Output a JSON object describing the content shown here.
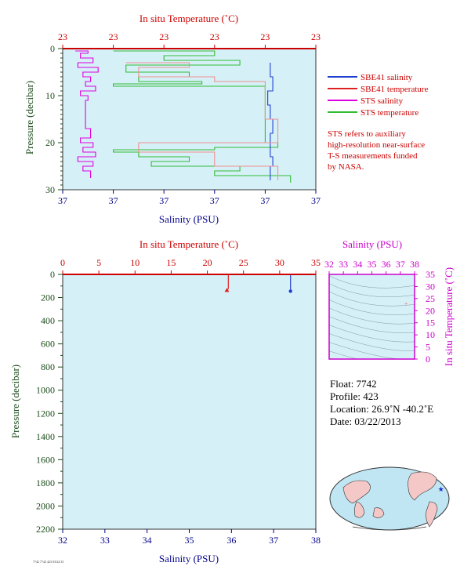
{
  "colors": {
    "plot_bg": "#d6f0f8",
    "salinity_axis": "#00008b",
    "temperature_axis": "#cc0000",
    "sbe_salinity": "#1f3fd0",
    "sbe_temperature": "#e02020",
    "sts_salinity": "#e000e0",
    "sts_temperature": "#33bb33",
    "sts_temperature_light": "#f09090",
    "ts_axis": "#cc00cc",
    "pressure_axis": "#1a4a1a",
    "note_text": "#cc0000"
  },
  "chart_data": [
    {
      "type": "line",
      "title": "In situ Temperature (˚C)",
      "top_axis_label": "In situ Temperature (˚C)",
      "top_ticks": [
        "23",
        "23",
        "23",
        "23",
        "23",
        "23"
      ],
      "xlabel": "Salinity (PSU)",
      "bottom_ticks": [
        "37",
        "37",
        "37",
        "37",
        "37",
        "37"
      ],
      "ylabel": "Pressure (decibar)",
      "y_ticks": [
        "0",
        "10",
        "20",
        "30"
      ],
      "ylim": [
        0,
        30
      ],
      "grid": false,
      "legend": [
        {
          "label": "SBE41 salinity",
          "color": "#1f3fd0"
        },
        {
          "label": "SBE41 temperature",
          "color": "#e02020"
        },
        {
          "label": "STS salinity",
          "color": "#e000e0"
        },
        {
          "label": "STS temperature",
          "color": "#33bb33"
        }
      ],
      "note": [
        "STS refers to auxiliary",
        "high-resolution near-surface",
        "T-S measurements funded",
        "by NASA."
      ],
      "series": [
        {
          "name": "STS salinity",
          "x_frac": [
            0.05,
            0.1,
            0.07,
            0.12,
            0.06,
            0.14,
            0.08,
            0.11,
            0.09,
            0.13,
            0.07,
            0.1,
            0.09,
            0.09,
            0.09,
            0.09,
            0.09,
            0.09,
            0.11,
            0.07,
            0.12,
            0.08,
            0.13,
            0.06,
            0.12,
            0.08,
            0.11
          ],
          "y": [
            0.5,
            1,
            2,
            3,
            4,
            5,
            6,
            7,
            8,
            9,
            10,
            11,
            12,
            13,
            14,
            15,
            16,
            17,
            19,
            20,
            21,
            22,
            23,
            24,
            25,
            26,
            27.5
          ]
        },
        {
          "name": "STS temperature",
          "x_frac": [
            0.2,
            0.6,
            0.4,
            0.7,
            0.25,
            0.5,
            0.3,
            0.55,
            0.2,
            0.8,
            0.8,
            0.8,
            0.8,
            0.8,
            0.8,
            0.8,
            0.85,
            0.6,
            0.2,
            0.3,
            0.5,
            0.35,
            0.7,
            0.6,
            0.9,
            0.9
          ],
          "y": [
            0.5,
            1.5,
            2.5,
            3.5,
            5,
            6,
            7,
            7.5,
            8,
            9,
            11,
            13,
            15,
            17,
            19,
            20,
            21,
            21.5,
            22,
            23,
            24,
            25,
            26,
            27,
            28,
            28.5
          ]
        },
        {
          "name": "SBE41 salinity",
          "x_frac": [
            0.82,
            0.82,
            0.83,
            0.81,
            0.82,
            0.83,
            0.82,
            0.82,
            0.83,
            0.82,
            0.82
          ],
          "y": [
            3,
            6,
            9,
            12,
            15,
            18,
            21,
            23,
            25,
            27,
            28
          ]
        },
        {
          "name": "SBE41 temperature",
          "x_frac": [
            0.25,
            0.5,
            0.3,
            0.6,
            0.8,
            0.8,
            0.85,
            0.3,
            0.6,
            0.85
          ],
          "y": [
            3,
            4,
            6,
            7,
            8,
            15,
            20,
            22,
            25,
            28
          ]
        }
      ]
    },
    {
      "type": "line",
      "top_axis_label": "In situ Temperature (˚C)",
      "top_ticks": [
        "0",
        "5",
        "10",
        "15",
        "20",
        "25",
        "30",
        "35"
      ],
      "xlim_temperature": [
        0,
        35
      ],
      "xlabel": "Salinity (PSU)",
      "bottom_ticks": [
        "32",
        "33",
        "34",
        "35",
        "36",
        "37",
        "38"
      ],
      "xlim_salinity": [
        32,
        38
      ],
      "ylabel": "Pressure (decibar)",
      "y_ticks": [
        "0",
        "200",
        "400",
        "600",
        "800",
        "1000",
        "1200",
        "1400",
        "1600",
        "1800",
        "2000",
        "2200"
      ],
      "ylim": [
        0,
        2200
      ],
      "grid": false,
      "series": [
        {
          "name": "temperature",
          "x": [
            22.9,
            22.9,
            22.7
          ],
          "y": [
            0,
            120,
            145
          ]
        },
        {
          "name": "salinity",
          "x": [
            37.4,
            37.4,
            37.4
          ],
          "y": [
            0,
            120,
            145
          ]
        }
      ]
    },
    {
      "type": "scatter",
      "xlabel": "Salinity (PSU)",
      "x_ticks": [
        "32",
        "33",
        "34",
        "35",
        "36",
        "37",
        "38"
      ],
      "xlim": [
        32,
        38
      ],
      "ylabel": "In situ Temperature (˚C)",
      "y_ticks": [
        "0",
        "5",
        "10",
        "15",
        "20",
        "25",
        "30",
        "35"
      ],
      "ylim": [
        0,
        35
      ],
      "points": [
        {
          "x": 37.4,
          "y": 23
        }
      ]
    }
  ],
  "float_info": {
    "float": "Float:  7742",
    "profile": "Profile:  423",
    "location": "Location:  26.9˚N  -40.2˚E",
    "date": "Date:  03/22/2013"
  },
  "footer_text": "7742 7742 423 03/22/13",
  "map": {
    "marker_lat": 26.9,
    "marker_lon": -40.2
  }
}
